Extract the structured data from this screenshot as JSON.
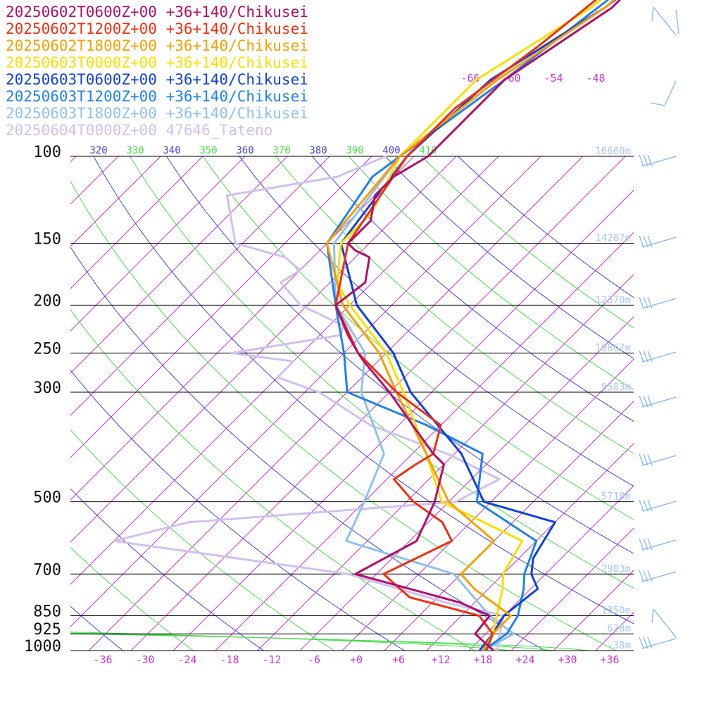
{
  "chart_data": {
    "type": "line",
    "chart_kind": "skew-T sounding",
    "x_scale": "skewed temperature",
    "y_scale": "log pressure",
    "xlim": [
      -39,
      40
    ],
    "ylim": [
      1000,
      100
    ],
    "pressure_levels": [
      {
        "p": 100,
        "label": "100",
        "height": "16660m"
      },
      {
        "p": 150,
        "label": "150",
        "height": "14207m"
      },
      {
        "p": 200,
        "label": "200",
        "height": "12370m"
      },
      {
        "p": 250,
        "label": "250",
        "height": "10867m"
      },
      {
        "p": 300,
        "label": "300",
        "height": "9583m"
      },
      {
        "p": 500,
        "label": "500",
        "height": "5710m"
      },
      {
        "p": 700,
        "label": "700",
        "height": "2983m"
      },
      {
        "p": 850,
        "label": "850",
        "height": "1350m"
      },
      {
        "p": 925,
        "label": "925",
        "height": "628m"
      },
      {
        "p": 1000,
        "label": "1000",
        "height": "-38m"
      }
    ],
    "temp_ticks": [
      {
        "t": -36,
        "label": "-36"
      },
      {
        "t": -30,
        "label": "-30"
      },
      {
        "t": -24,
        "label": "-24"
      },
      {
        "t": -18,
        "label": "-18"
      },
      {
        "t": -12,
        "label": "-12"
      },
      {
        "t": -6,
        "label": "-6"
      },
      {
        "t": 0,
        "label": "+0"
      },
      {
        "t": 6,
        "label": "+6"
      },
      {
        "t": 12,
        "label": "+12"
      },
      {
        "t": 18,
        "label": "+18"
      },
      {
        "t": 24,
        "label": "+24"
      },
      {
        "t": 30,
        "label": "+30"
      },
      {
        "t": 36,
        "label": "+36"
      }
    ],
    "upper_isotherm_labels": [
      {
        "t": -66,
        "label": "-66"
      },
      {
        "t": -60,
        "label": "-60"
      },
      {
        "t": -54,
        "label": "-54"
      },
      {
        "t": -48,
        "label": "-48"
      }
    ],
    "theta_labels": [
      {
        "value": 320,
        "label": "320",
        "color": "#4444dd"
      },
      {
        "value": 330,
        "label": "330",
        "color": "#44dd44"
      },
      {
        "value": 340,
        "label": "340",
        "color": "#4444dd"
      },
      {
        "value": 350,
        "label": "350",
        "color": "#44dd44"
      },
      {
        "value": 360,
        "label": "360",
        "color": "#4444dd"
      },
      {
        "value": 370,
        "label": "370",
        "color": "#44dd44"
      },
      {
        "value": 380,
        "label": "380",
        "color": "#4444dd"
      },
      {
        "value": 390,
        "label": "390",
        "color": "#44dd44"
      },
      {
        "value": 400,
        "label": "400",
        "color": "#4444dd"
      },
      {
        "value": 410,
        "label": "410",
        "color": "#44dd44"
      }
    ],
    "series": [
      {
        "name": "20250602T0600Z+00 +36+140/Chikusei",
        "color": "#b0106a",
        "points": [
          [
            1000,
            19.5
          ],
          [
            925,
            14.5
          ],
          [
            850,
            14
          ],
          [
            800,
            8
          ],
          [
            700,
            -11
          ],
          [
            600,
            -7
          ],
          [
            500,
            -10
          ],
          [
            420,
            -14
          ],
          [
            400,
            -17
          ],
          [
            350,
            -24
          ],
          [
            300,
            -32
          ],
          [
            260,
            -40
          ],
          [
            250,
            -42
          ],
          [
            230,
            -46
          ],
          [
            200,
            -52
          ],
          [
            180,
            -51
          ],
          [
            160,
            -54
          ],
          [
            155,
            -57
          ],
          [
            150,
            -59
          ],
          [
            135,
            -59
          ],
          [
            120,
            -62
          ],
          [
            110,
            -62
          ],
          [
            100,
            -60
          ],
          [
            70,
            -60
          ],
          [
            50,
            -55
          ],
          [
            40,
            -55
          ]
        ]
      },
      {
        "name": "20250602T1200Z+00 +36+140/Chikusei",
        "color": "#f03010",
        "points": [
          [
            1000,
            18.5
          ],
          [
            925,
            17
          ],
          [
            850,
            12.5
          ],
          [
            780,
            0
          ],
          [
            700,
            -7
          ],
          [
            600,
            -2
          ],
          [
            550,
            -6
          ],
          [
            500,
            -13
          ],
          [
            450,
            -19
          ],
          [
            420,
            -18
          ],
          [
            400,
            -17
          ],
          [
            350,
            -20
          ],
          [
            300,
            -31
          ],
          [
            250,
            -42
          ],
          [
            200,
            -52
          ],
          [
            150,
            -59
          ],
          [
            100,
            -63
          ],
          [
            80,
            -63
          ],
          [
            60,
            -60
          ],
          [
            40,
            -57
          ]
        ]
      },
      {
        "name": "20250602T1800Z+00 +36+140/Chikusei",
        "color": "#f8a000",
        "points": [
          [
            1000,
            18
          ],
          [
            925,
            17
          ],
          [
            850,
            17
          ],
          [
            750,
            8
          ],
          [
            700,
            4
          ],
          [
            600,
            4
          ],
          [
            500,
            -8
          ],
          [
            400,
            -18
          ],
          [
            300,
            -31
          ],
          [
            250,
            -39
          ],
          [
            200,
            -51
          ],
          [
            150,
            -62
          ],
          [
            100,
            -64
          ],
          [
            70,
            -61
          ],
          [
            50,
            -56
          ],
          [
            40,
            -55
          ]
        ]
      },
      {
        "name": "20250603T0000Z+00 +36+140/Chikusei",
        "color": "#f8e000",
        "points": [
          [
            1000,
            18.5
          ],
          [
            925,
            17
          ],
          [
            850,
            15
          ],
          [
            750,
            12
          ],
          [
            700,
            10
          ],
          [
            600,
            8
          ],
          [
            500,
            -9
          ],
          [
            400,
            -18
          ],
          [
            300,
            -30
          ],
          [
            250,
            -38
          ],
          [
            200,
            -50
          ],
          [
            180,
            -55
          ],
          [
            150,
            -60
          ],
          [
            130,
            -60
          ],
          [
            100,
            -64
          ],
          [
            70,
            -64
          ],
          [
            50,
            -58
          ],
          [
            40,
            -56
          ]
        ]
      },
      {
        "name": "20250603T0600Z+00 +36+140/Chikusei",
        "color": "#1040e0",
        "points": [
          [
            1000,
            17.5
          ],
          [
            925,
            17
          ],
          [
            850,
            16
          ],
          [
            750,
            17
          ],
          [
            700,
            14
          ],
          [
            650,
            12
          ],
          [
            550,
            10
          ],
          [
            500,
            -3
          ],
          [
            400,
            -13
          ],
          [
            300,
            -29
          ],
          [
            250,
            -37
          ],
          [
            200,
            -49
          ],
          [
            150,
            -60
          ],
          [
            100,
            -63
          ],
          [
            70,
            -62
          ],
          [
            50,
            -56
          ],
          [
            40,
            -54
          ]
        ]
      },
      {
        "name": "20250603T1200Z+00 +36+140/Chikusei",
        "color": "#2080f0",
        "points": [
          [
            1000,
            18
          ],
          [
            925,
            19
          ],
          [
            850,
            18
          ],
          [
            750,
            15
          ],
          [
            700,
            13
          ],
          [
            600,
            10
          ],
          [
            500,
            -4
          ],
          [
            400,
            -10
          ],
          [
            350,
            -22
          ],
          [
            300,
            -38
          ],
          [
            250,
            -44
          ],
          [
            200,
            -52
          ],
          [
            150,
            -62
          ],
          [
            110,
            -65
          ],
          [
            100,
            -64
          ],
          [
            70,
            -60
          ],
          [
            50,
            -57
          ],
          [
            40,
            -55
          ]
        ]
      },
      {
        "name": "20250603T1800Z+00 +36+140/Chikusei",
        "color": "#90c0f0",
        "points": [
          [
            1000,
            18
          ],
          [
            925,
            20
          ],
          [
            850,
            14
          ],
          [
            700,
            3
          ],
          [
            600,
            -17
          ],
          [
            500,
            -20
          ],
          [
            400,
            -24
          ],
          [
            300,
            -36
          ],
          [
            250,
            -41
          ],
          [
            200,
            -52
          ],
          [
            150,
            -61
          ],
          [
            100,
            -64
          ],
          [
            70,
            -60
          ],
          [
            50,
            -57
          ]
        ]
      },
      {
        "name": "20250604T0000Z+00 47646_Tateno",
        "color": "#d0c0f0",
        "points": [
          [
            1000,
            20
          ],
          [
            925,
            18
          ],
          [
            850,
            16
          ],
          [
            800,
            6
          ],
          [
            700,
            -12
          ],
          [
            600,
            -50
          ],
          [
            550,
            -42
          ],
          [
            500,
            -7
          ],
          [
            450,
            -4
          ],
          [
            400,
            -15
          ],
          [
            350,
            -30
          ],
          [
            300,
            -42
          ],
          [
            280,
            -50
          ],
          [
            260,
            -50
          ],
          [
            250,
            -60
          ],
          [
            230,
            -47
          ],
          [
            220,
            -48
          ],
          [
            200,
            -57
          ],
          [
            180,
            -63
          ],
          [
            170,
            -62
          ],
          [
            160,
            -66
          ],
          [
            150,
            -75
          ],
          [
            120,
            -83
          ],
          [
            110,
            -70
          ],
          [
            100,
            -66
          ]
        ]
      }
    ]
  }
}
